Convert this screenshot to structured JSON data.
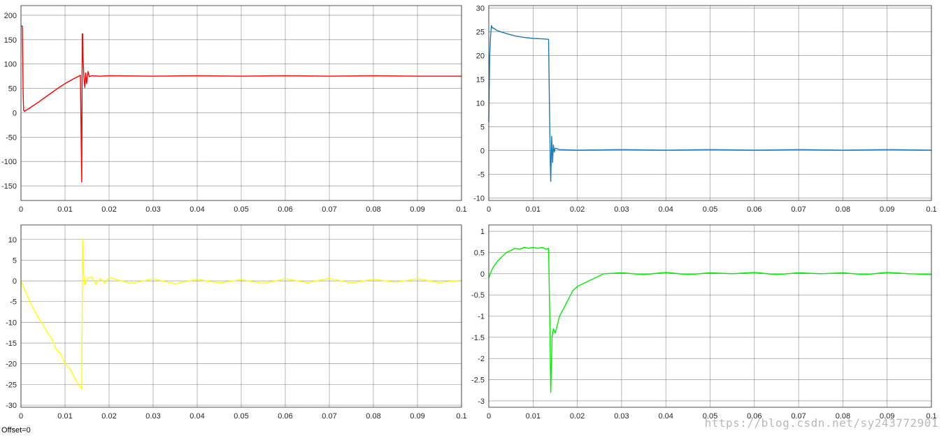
{
  "footer": {
    "offset_label": "Offset=0"
  },
  "watermark": "https://blog.csdn.net/sy243772901",
  "chart_data": [
    {
      "type": "line",
      "title": "",
      "xlim": [
        0,
        0.1
      ],
      "ylim": [
        -180,
        220
      ],
      "xticks": [
        "0",
        "0.01",
        "0.02",
        "0.03",
        "0.04",
        "0.05",
        "0.06",
        "0.07",
        "0.08",
        "0.09",
        "0.1"
      ],
      "yticks": [
        200,
        150,
        100,
        50,
        0,
        -50,
        -100,
        -150
      ],
      "grid": true,
      "color": "#ff0000",
      "series": [
        {
          "x": [
            0,
            0.0003,
            0.0005,
            0.0006,
            0.0008,
            0.002,
            0.004,
            0.006,
            0.008,
            0.01,
            0.012,
            0.0135,
            0.0137,
            0.0138,
            0.0139,
            0.014,
            0.0141,
            0.0143,
            0.0145,
            0.0147,
            0.0149,
            0.0152,
            0.0155,
            0.016,
            0.018,
            0.02,
            0.03,
            0.04,
            0.05,
            0.06,
            0.07,
            0.08,
            0.09,
            0.1
          ],
          "y": [
            178,
            178,
            40,
            5,
            3,
            10,
            22,
            35,
            48,
            60,
            70,
            77,
            -80,
            -142,
            162,
            162,
            110,
            70,
            52,
            82,
            60,
            85,
            74,
            76,
            75,
            76,
            75,
            76,
            75,
            76,
            75,
            76,
            75,
            75
          ]
        }
      ]
    },
    {
      "type": "line",
      "title": "",
      "xlim": [
        0,
        0.1
      ],
      "ylim": [
        -10.5,
        30.5
      ],
      "xticks": [
        "0",
        "0.01",
        "0.02",
        "0.03",
        "0.04",
        "0.05",
        "0.06",
        "0.07",
        "0.08",
        "0.09",
        "0.1"
      ],
      "yticks": [
        30,
        25,
        20,
        15,
        10,
        5,
        0,
        -5,
        -10
      ],
      "grid": true,
      "color": "#1f77b4",
      "series": [
        {
          "x": [
            0,
            0.0002,
            0.0004,
            0.0006,
            0.0008,
            0.001,
            0.002,
            0.004,
            0.006,
            0.008,
            0.01,
            0.012,
            0.0135,
            0.0137,
            0.0139,
            0.014,
            0.0142,
            0.0144,
            0.0146,
            0.0148,
            0.015,
            0.016,
            0.02,
            0.03,
            0.04,
            0.05,
            0.06,
            0.07,
            0.08,
            0.09,
            0.1
          ],
          "y": [
            6,
            20,
            24,
            26.3,
            25.8,
            25.8,
            25.2,
            24.6,
            24.1,
            23.8,
            23.6,
            23.5,
            23.4,
            10,
            -3,
            -6.5,
            3,
            -2.5,
            1.2,
            -0.3,
            0.5,
            0.2,
            0.1,
            0.2,
            0.1,
            0.2,
            0.1,
            0.2,
            0.1,
            0.2,
            0.1
          ]
        }
      ]
    },
    {
      "type": "line",
      "title": "",
      "xlim": [
        0,
        0.1
      ],
      "ylim": [
        -30.5,
        13.5
      ],
      "xticks": [
        "0",
        "0.01",
        "0.02",
        "0.03",
        "0.04",
        "0.05",
        "0.06",
        "0.07",
        "0.08",
        "0.09",
        "0.1"
      ],
      "yticks": [
        10,
        5,
        0,
        -5,
        -10,
        -15,
        -20,
        -25,
        -30
      ],
      "grid": true,
      "color": "#ffff00",
      "series": [
        {
          "x": [
            0,
            0.001,
            0.002,
            0.003,
            0.004,
            0.005,
            0.006,
            0.007,
            0.008,
            0.009,
            0.01,
            0.011,
            0.012,
            0.013,
            0.0138,
            0.014,
            0.0142,
            0.0145,
            0.015,
            0.016,
            0.017,
            0.018,
            0.019,
            0.02,
            0.025,
            0.03,
            0.035,
            0.04,
            0.045,
            0.05,
            0.055,
            0.06,
            0.065,
            0.07,
            0.075,
            0.08,
            0.085,
            0.09,
            0.095,
            0.1
          ],
          "y": [
            0,
            -2.5,
            -5,
            -7,
            -9,
            -10.5,
            -12.5,
            -14,
            -16.5,
            -17.5,
            -20,
            -21,
            -23,
            -25,
            -26,
            10,
            2,
            -1,
            0.5,
            1,
            -0.8,
            0.6,
            -0.5,
            0.8,
            -0.6,
            0.5,
            -0.7,
            0.4,
            -0.5,
            0.3,
            -0.6,
            0.5,
            -0.4,
            0.6,
            -0.5,
            0.4,
            -0.3,
            0.5,
            -0.4,
            0.2
          ]
        }
      ]
    },
    {
      "type": "line",
      "title": "",
      "xlim": [
        0,
        0.1
      ],
      "ylim": [
        -3.15,
        1.15
      ],
      "xticks": [
        "0",
        "0.01",
        "0.02",
        "0.03",
        "0.04",
        "0.05",
        "0.06",
        "0.07",
        "0.08",
        "0.09",
        "0.1"
      ],
      "yticks": [
        1,
        0.5,
        0,
        -0.5,
        -1,
        -1.5,
        -2,
        -2.5,
        -3
      ],
      "grid": true,
      "color": "#00ee00",
      "series": [
        {
          "x": [
            0,
            0.0005,
            0.001,
            0.002,
            0.003,
            0.004,
            0.005,
            0.006,
            0.007,
            0.008,
            0.009,
            0.01,
            0.011,
            0.012,
            0.013,
            0.0135,
            0.0138,
            0.014,
            0.0143,
            0.0146,
            0.015,
            0.016,
            0.017,
            0.018,
            0.019,
            0.02,
            0.022,
            0.024,
            0.026,
            0.03,
            0.035,
            0.04,
            0.045,
            0.05,
            0.055,
            0.06,
            0.065,
            0.07,
            0.075,
            0.08,
            0.085,
            0.09,
            0.095,
            0.1
          ],
          "y": [
            -0.1,
            0.05,
            0.15,
            0.3,
            0.4,
            0.5,
            0.55,
            0.6,
            0.58,
            0.62,
            0.6,
            0.62,
            0.6,
            0.62,
            0.58,
            0.6,
            -1.2,
            -2.8,
            -1.5,
            -1.3,
            -1.4,
            -1.0,
            -0.8,
            -0.6,
            -0.4,
            -0.3,
            -0.2,
            -0.1,
            0,
            0.02,
            -0.02,
            0.03,
            -0.02,
            0.02,
            0,
            0.03,
            -0.02,
            0.02,
            0,
            0.02,
            -0.02,
            0.03,
            0,
            -0.02
          ]
        }
      ]
    }
  ]
}
